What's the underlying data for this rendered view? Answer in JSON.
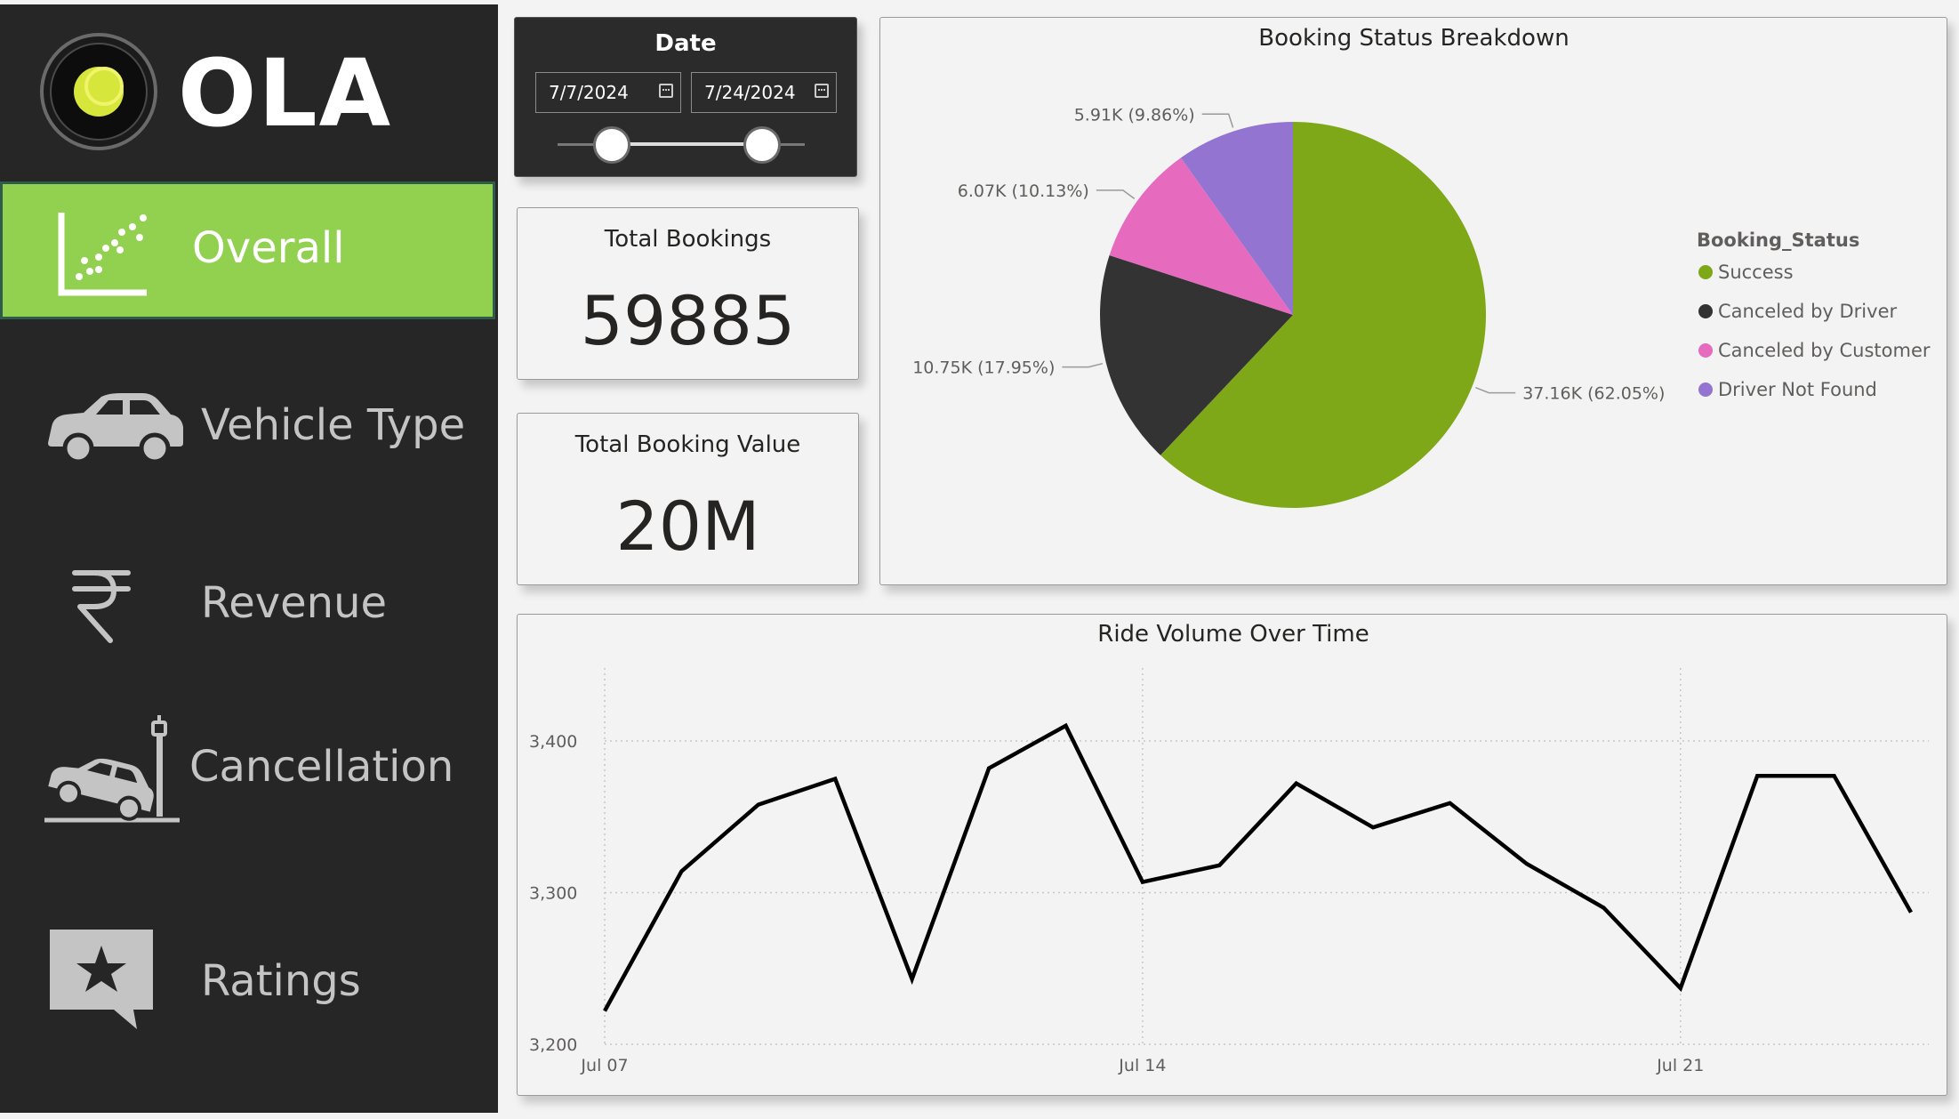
{
  "sidebar": {
    "logo_text": "OLA",
    "items": [
      {
        "label": "Overall",
        "icon": "scatter-chart-icon",
        "active": true
      },
      {
        "label": "Vehicle Type",
        "icon": "car-icon",
        "active": false
      },
      {
        "label": "Revenue",
        "icon": "rupee-icon",
        "active": false
      },
      {
        "label": "Cancellation",
        "icon": "car-crash-icon",
        "active": false
      },
      {
        "label": "Ratings",
        "icon": "star-review-icon",
        "active": false
      }
    ]
  },
  "date_slicer": {
    "title": "Date",
    "start": "7/7/2024",
    "end": "7/24/2024"
  },
  "kpis": {
    "total_bookings": {
      "label": "Total Bookings",
      "value": "59885"
    },
    "total_booking_value": {
      "label": "Total Booking Value",
      "value": "20M"
    }
  },
  "colors": {
    "sidebar_bg": "#262626",
    "active_nav": "#92d050",
    "success": "#7ea818",
    "canceled_by_driver": "#333333",
    "canceled_by_customer": "#e66bbf",
    "driver_not_found": "#9374d0"
  },
  "chart_data": [
    {
      "type": "pie",
      "title": "Booking Status Breakdown",
      "legend_title": "Booking_Status",
      "legend_position": "right",
      "slices": [
        {
          "name": "Success",
          "value": 37160,
          "percent": 62.05,
          "label": "37.16K (62.05%)",
          "color": "#7ea818"
        },
        {
          "name": "Canceled by Driver",
          "value": 10750,
          "percent": 17.95,
          "label": "10.75K (17.95%)",
          "color": "#333333"
        },
        {
          "name": "Canceled by Customer",
          "value": 6070,
          "percent": 10.13,
          "label": "6.07K (10.13%)",
          "color": "#e66bbf"
        },
        {
          "name": "Driver Not Found",
          "value": 5910,
          "percent": 9.86,
          "label": "5.91K (9.86%)",
          "color": "#9374d0"
        }
      ]
    },
    {
      "type": "line",
      "title": "Ride Volume Over Time",
      "x": [
        "2024-07-07",
        "2024-07-08",
        "2024-07-09",
        "2024-07-10",
        "2024-07-11",
        "2024-07-12",
        "2024-07-13",
        "2024-07-14",
        "2024-07-15",
        "2024-07-16",
        "2024-07-17",
        "2024-07-18",
        "2024-07-19",
        "2024-07-20",
        "2024-07-21",
        "2024-07-22",
        "2024-07-23",
        "2024-07-24"
      ],
      "values": [
        3222,
        3314,
        3358,
        3375,
        3243,
        3382,
        3410,
        3307,
        3318,
        3372,
        3343,
        3359,
        3319,
        3290,
        3237,
        3377,
        3377,
        3287
      ],
      "x_ticks": [
        "Jul 07",
        "Jul 14",
        "Jul 21"
      ],
      "y_ticks": [
        "3,200",
        "3,300",
        "3,400"
      ],
      "ylim": [
        3200,
        3400
      ],
      "grid": true,
      "color": "#000000"
    }
  ]
}
